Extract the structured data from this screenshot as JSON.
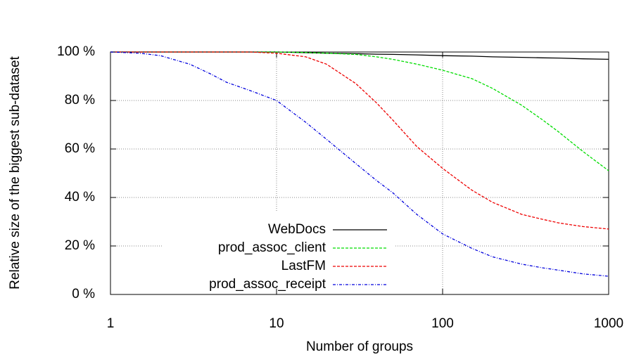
{
  "chart_data": {
    "type": "line",
    "xlabel": "Number of groups",
    "ylabel": "Relative size of the biggest sub-dataset",
    "xscale": "log",
    "xlim": [
      1,
      1000
    ],
    "xticks": [
      1,
      10,
      100,
      1000
    ],
    "ylim": [
      0,
      100
    ],
    "yticks": [
      {
        "value": 0,
        "label": "0 %"
      },
      {
        "value": 20,
        "label": "20 %"
      },
      {
        "value": 40,
        "label": "40 %"
      },
      {
        "value": 60,
        "label": "60 %"
      },
      {
        "value": 80,
        "label": "80 %"
      },
      {
        "value": 100,
        "label": "100 %"
      }
    ],
    "grid": true,
    "legend": "lower center",
    "x": [
      1,
      1.5,
      2,
      3,
      4,
      5,
      7,
      10,
      15,
      20,
      30,
      40,
      50,
      70,
      100,
      150,
      200,
      300,
      400,
      500,
      700,
      1000
    ],
    "series": [
      {
        "name": "WebDocs",
        "color": "#000000",
        "style": "solid",
        "values": [
          100,
          100,
          100,
          100,
          100,
          100,
          100,
          100,
          99.7,
          99.5,
          99.3,
          99.1,
          99,
          98.8,
          98.5,
          98.3,
          98,
          97.8,
          97.6,
          97.5,
          97.2,
          97
        ]
      },
      {
        "name": "prod_assoc_client",
        "color": "#00dd00",
        "style": "dashed",
        "values": [
          100,
          100,
          100,
          100,
          100,
          100,
          100,
          100,
          99.8,
          99.5,
          99,
          98,
          97,
          95,
          92.5,
          89,
          85,
          78,
          72,
          67,
          59,
          51
        ]
      },
      {
        "name": "LastFM",
        "color": "#ee0000",
        "style": "dashed",
        "values": [
          100,
          100,
          100,
          100,
          100,
          100,
          100,
          99.5,
          98,
          95,
          87,
          79,
          72,
          61,
          52,
          43,
          38,
          33,
          31,
          29.5,
          28,
          27
        ]
      },
      {
        "name": "prod_assoc_receipt",
        "color": "#0000dd",
        "style": "dashdot",
        "values": [
          100,
          99.5,
          98.5,
          95,
          91,
          87.5,
          84,
          80,
          71,
          64,
          54,
          47,
          42,
          33,
          25,
          19,
          15.5,
          12.5,
          11,
          10,
          8.5,
          7.5
        ]
      }
    ]
  }
}
